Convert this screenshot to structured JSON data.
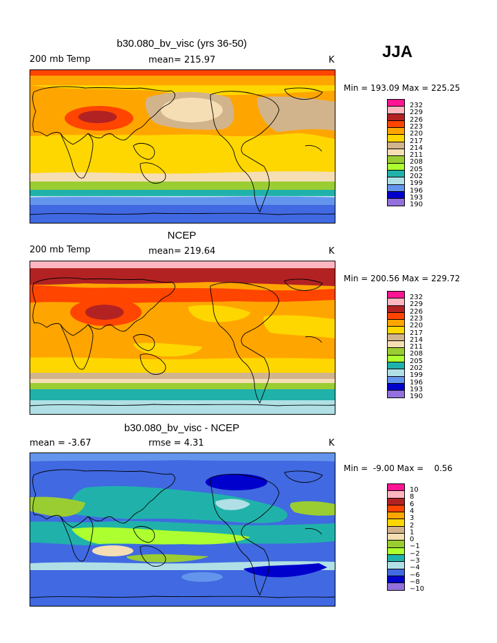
{
  "season": "JJA",
  "panels": [
    {
      "title": "b30.080_bv_visc (yrs 36-50)",
      "left_label": "200 mb Temp",
      "center_label": "mean= 215.97",
      "right_label": "K",
      "minmax": "Min = 193.09 Max = 225.25",
      "legend": [
        "232",
        "229",
        "226",
        "223",
        "220",
        "217",
        "214",
        "211",
        "208",
        "205",
        "202",
        "199",
        "196",
        "193",
        "190"
      ]
    },
    {
      "title": "NCEP",
      "left_label": "200 mb Temp",
      "center_label": "mean= 219.64",
      "right_label": "K",
      "minmax": "Min = 200.56 Max = 229.72",
      "legend": [
        "232",
        "229",
        "226",
        "223",
        "220",
        "217",
        "214",
        "211",
        "208",
        "205",
        "202",
        "199",
        "196",
        "193",
        "190"
      ]
    },
    {
      "title": "b30.080_bv_visc - NCEP",
      "left_label": "mean =   -3.67",
      "center_label": "rmse =    4.31",
      "right_label": "K",
      "minmax": "Min =  -9.00 Max =    0.56",
      "legend": [
        "10",
        "8",
        "6",
        "4",
        "3",
        "2",
        "1",
        "0",
        "−1",
        "−2",
        "−3",
        "−4",
        "−6",
        "−8",
        "−10"
      ]
    }
  ],
  "colors": {
    "c1": "#ff1493",
    "c2": "#ffb6c1",
    "c3": "#b22222",
    "c4": "#ff4500",
    "c5": "#ffa500",
    "c6": "#ffd700",
    "c7": "#d2b48c",
    "c8": "#f5deb3",
    "c9": "#9acd32",
    "c10": "#adff2f",
    "c11": "#20b2aa",
    "c12": "#b0e0e6",
    "c13": "#4169e1",
    "c14": "#0000cd",
    "c15": "#9370db"
  },
  "legend_colors": [
    "#ff1493",
    "#ffb6c1",
    "#b22222",
    "#ff4500",
    "#ffa500",
    "#ffd700",
    "#d2b48c",
    "#f5deb3",
    "#9acd32",
    "#adff2f",
    "#20b2aa",
    "#b0e0e6",
    "#6495ed",
    "#0000cd",
    "#9370db"
  ],
  "legend_colors_diff": [
    "#ff1493",
    "#ffb6c1",
    "#b22222",
    "#ff4500",
    "#ffa500",
    "#ffd700",
    "#d2b48c",
    "#f5deb3",
    "#9acd32",
    "#adff2f",
    "#20b2aa",
    "#b0e0e6",
    "#4169e1",
    "#0000cd",
    "#9370db"
  ]
}
